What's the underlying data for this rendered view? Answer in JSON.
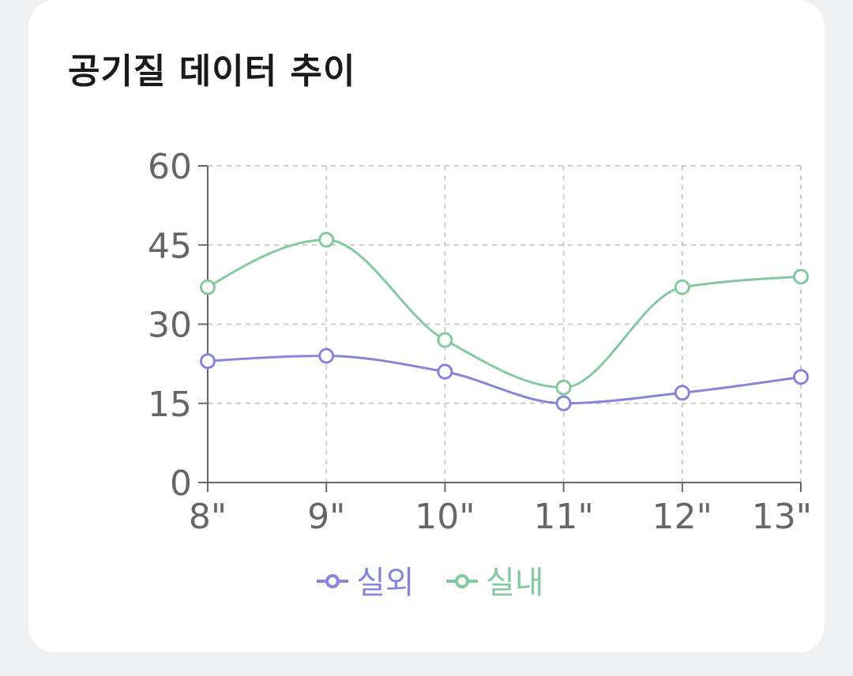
{
  "card": {
    "title": "공기질 데이터 추이"
  },
  "chart_data": {
    "type": "line",
    "title": "공기질 데이터 추이",
    "smooth": true,
    "x": [
      "8\"",
      "9\"",
      "10\"",
      "11\"",
      "12\"",
      "13\""
    ],
    "ylim": [
      0,
      60
    ],
    "yticks": [
      0,
      15,
      30,
      45,
      60
    ],
    "grid": true,
    "legend_position": "bottom-center",
    "series": [
      {
        "name": "실외",
        "color": "#8884d8",
        "values": [
          23,
          24,
          21,
          15,
          17,
          20
        ]
      },
      {
        "name": "실내",
        "color": "#82ca9d",
        "values": [
          37,
          46,
          27,
          18,
          37,
          39
        ]
      }
    ]
  }
}
